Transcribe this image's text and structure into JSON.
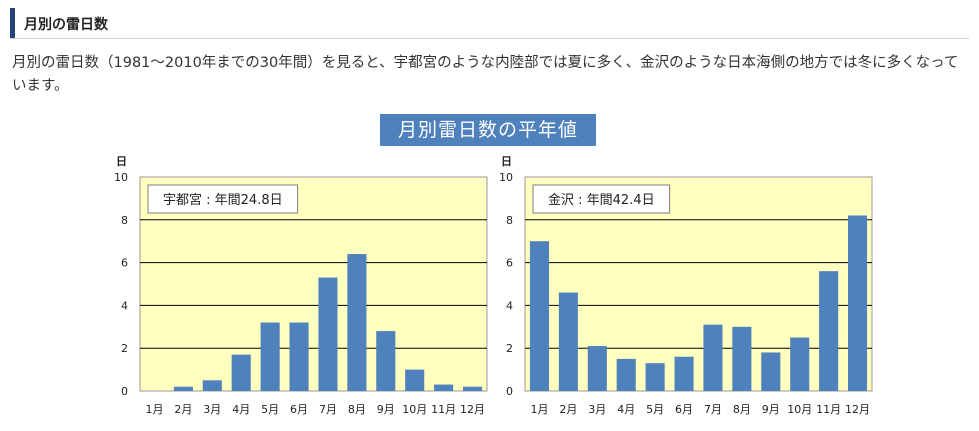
{
  "section": {
    "title": "月別の雷日数"
  },
  "intro": {
    "text": "月別の雷日数（1981～2010年までの30年間）を見ると、宇都宮のような内陸部では夏に多く、金沢のような日本海側の地方では冬に多くなっています。"
  },
  "banner": {
    "text": "月別雷日数の平年値"
  },
  "colors": {
    "bar": "#4f81bd",
    "plot_bg": "#ffffc0",
    "banner_bg": "#4f81bd",
    "section_bar": "#22447a"
  },
  "chart_data": [
    {
      "type": "bar",
      "title": "宇都宮 : 年間24.8日",
      "ylabel": "日",
      "xlabel": "",
      "ylim": [
        0,
        10
      ],
      "yticks": [
        0,
        2,
        4,
        6,
        8,
        10
      ],
      "grid": true,
      "categories": [
        "1月",
        "2月",
        "3月",
        "4月",
        "5月",
        "6月",
        "7月",
        "8月",
        "9月",
        "10月",
        "11月",
        "12月"
      ],
      "values": [
        0,
        0.2,
        0.5,
        1.7,
        3.2,
        3.2,
        5.3,
        6.4,
        2.8,
        1.0,
        0.3,
        0.2
      ]
    },
    {
      "type": "bar",
      "title": "金沢 : 年間42.4日",
      "ylabel": "日",
      "xlabel": "",
      "ylim": [
        0,
        10
      ],
      "yticks": [
        0,
        2,
        4,
        6,
        8,
        10
      ],
      "grid": true,
      "categories": [
        "1月",
        "2月",
        "3月",
        "4月",
        "5月",
        "6月",
        "7月",
        "8月",
        "9月",
        "10月",
        "11月",
        "12月"
      ],
      "values": [
        7.0,
        4.6,
        2.1,
        1.5,
        1.3,
        1.6,
        3.1,
        3.0,
        1.8,
        2.5,
        5.6,
        8.2
      ]
    }
  ]
}
